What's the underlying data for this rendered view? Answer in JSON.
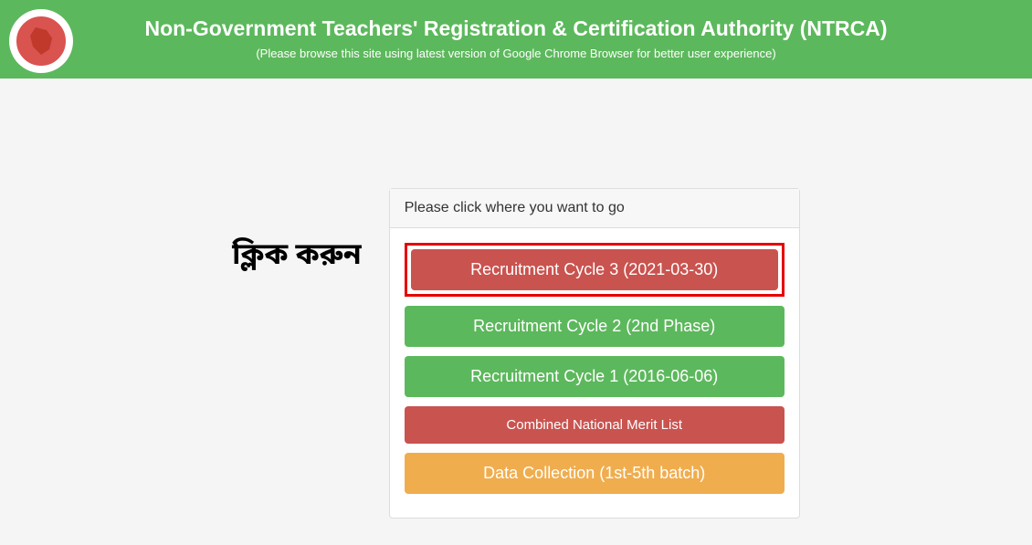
{
  "header": {
    "title": "Non-Government Teachers' Registration & Certification Authority (NTRCA)",
    "subtitle": "(Please browse this site using latest version of Google Chrome Browser for better user experience)"
  },
  "annotation": {
    "click_label": "ক্লিক করুন"
  },
  "panel": {
    "header": "Please click where you want to go",
    "buttons": {
      "cycle3": "Recruitment Cycle 3 (2021-03-30)",
      "cycle2": "Recruitment Cycle 2 (2nd Phase)",
      "cycle1": "Recruitment Cycle 1 (2016-06-06)",
      "merit": "Combined National Merit List",
      "data_collection": "Data Collection (1st-5th batch)"
    }
  },
  "colors": {
    "header_bg": "#5cb85c",
    "btn_danger": "#c9534f",
    "btn_success": "#5cb85c",
    "btn_warning": "#f0ad4e",
    "highlight_border": "#e60000",
    "page_bg": "#f5f5f5",
    "panel_header_bg": "#f7f7f7"
  }
}
